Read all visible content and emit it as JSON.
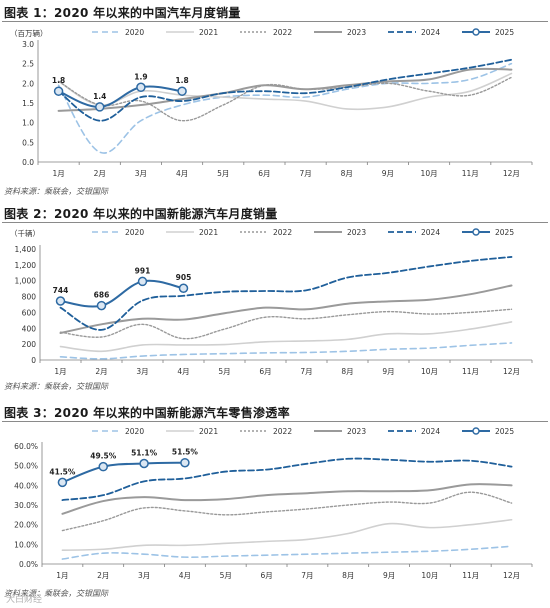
{
  "charts": [
    {
      "title": "图表 1：2020 年以来的中国汽车月度销量",
      "source": "资料来源：乘联会，交银国际",
      "chart_data": {
        "type": "line",
        "unit_label": "（百万辆）",
        "categories": [
          "1月",
          "2月",
          "3月",
          "4月",
          "5月",
          "6月",
          "7月",
          "8月",
          "9月",
          "10月",
          "11月",
          "12月"
        ],
        "ylim": [
          0,
          3.0
        ],
        "yticks": [
          "0.0",
          "0.5",
          "1.0",
          "1.5",
          "2.0",
          "2.5",
          "3.0"
        ],
        "ytick_values": [
          0,
          0.5,
          1,
          1.5,
          2,
          2.5,
          3
        ],
        "legend_position": "top",
        "series": [
          {
            "name": "2020",
            "color": "#9dc3e6",
            "dash": "6,4",
            "width": 1.6,
            "marker": false,
            "values": [
              1.95,
              0.25,
              1.05,
              1.45,
              1.65,
              1.7,
              1.65,
              1.85,
              2.0,
              2.0,
              2.1,
              2.5
            ]
          },
          {
            "name": "2021",
            "color": "#d0d0d0",
            "dash": "",
            "width": 1.6,
            "marker": false,
            "values": [
              2.05,
              1.45,
              1.8,
              1.7,
              1.65,
              1.6,
              1.55,
              1.35,
              1.4,
              1.65,
              1.8,
              2.25
            ]
          },
          {
            "name": "2022",
            "color": "#999999",
            "dash": "2,2",
            "width": 1.4,
            "marker": false,
            "values": [
              2.05,
              1.45,
              1.55,
              1.05,
              1.45,
              1.95,
              1.85,
              1.9,
              2.0,
              1.8,
              1.7,
              2.15
            ]
          },
          {
            "name": "2023",
            "color": "#9a9a9a",
            "dash": "",
            "width": 2.0,
            "marker": false,
            "values": [
              1.3,
              1.35,
              1.45,
              1.6,
              1.75,
              1.95,
              1.85,
              1.95,
              2.05,
              2.1,
              2.35,
              2.35
            ]
          },
          {
            "name": "2024",
            "color": "#1f5f9a",
            "dash": "6,3",
            "width": 1.8,
            "marker": false,
            "values": [
              1.8,
              1.05,
              1.65,
              1.55,
              1.75,
              1.8,
              1.75,
              1.9,
              2.1,
              2.25,
              2.4,
              2.6
            ]
          },
          {
            "name": "2025",
            "color": "#2e6aa3",
            "dash": "",
            "width": 2.0,
            "marker": true,
            "values": [
              1.8,
              1.4,
              1.9,
              1.8,
              null,
              null,
              null,
              null,
              null,
              null,
              null,
              null
            ],
            "labels": [
              "1.8",
              "1.4",
              "1.9",
              "1.8"
            ]
          }
        ]
      }
    },
    {
      "title": "图表 2：2020 年以来的中国新能源汽车月度销量",
      "source": "资料来源：乘联会，交银国际",
      "chart_data": {
        "type": "line",
        "unit_label": "（千辆）",
        "categories": [
          "1月",
          "2月",
          "3月",
          "4月",
          "5月",
          "6月",
          "7月",
          "8月",
          "9月",
          "10月",
          "11月",
          "12月"
        ],
        "ylim": [
          0,
          1400
        ],
        "yticks": [
          "0",
          "200",
          "400",
          "600",
          "800",
          "1,000",
          "1,200",
          "1,400"
        ],
        "ytick_values": [
          0,
          200,
          400,
          600,
          800,
          1000,
          1200,
          1400
        ],
        "legend_position": "top",
        "series": [
          {
            "name": "2020",
            "color": "#9dc3e6",
            "dash": "6,4",
            "width": 1.6,
            "marker": false,
            "values": [
              40,
              15,
              50,
              70,
              80,
              90,
              95,
              110,
              135,
              150,
              185,
              215
            ]
          },
          {
            "name": "2021",
            "color": "#d0d0d0",
            "dash": "",
            "width": 1.6,
            "marker": false,
            "values": [
              170,
              110,
              190,
              190,
              195,
              230,
              240,
              260,
              330,
              330,
              390,
              480
            ]
          },
          {
            "name": "2022",
            "color": "#999999",
            "dash": "2,2",
            "width": 1.4,
            "marker": false,
            "values": [
              350,
              290,
              450,
              270,
              390,
              540,
              520,
              570,
              610,
              580,
              600,
              640
            ]
          },
          {
            "name": "2023",
            "color": "#9a9a9a",
            "dash": "",
            "width": 2.0,
            "marker": false,
            "values": [
              340,
              450,
              520,
              510,
              590,
              660,
              640,
              710,
              740,
              760,
              830,
              940
            ]
          },
          {
            "name": "2024",
            "color": "#1f5f9a",
            "dash": "6,3",
            "width": 1.8,
            "marker": false,
            "values": [
              660,
              380,
              750,
              810,
              860,
              870,
              880,
              1040,
              1100,
              1180,
              1250,
              1300
            ]
          },
          {
            "name": "2025",
            "color": "#2e6aa3",
            "dash": "",
            "width": 2.0,
            "marker": true,
            "values": [
              744,
              686,
              991,
              905,
              null,
              null,
              null,
              null,
              null,
              null,
              null,
              null
            ],
            "labels": [
              "744",
              "686",
              "991",
              "905"
            ]
          }
        ]
      }
    },
    {
      "title": "图表 3：2020 年以来的中国新能源汽车零售渗透率",
      "source": "资料来源：乘联会，交银国际",
      "chart_data": {
        "type": "line",
        "unit_label": "",
        "categories": [
          "1月",
          "2月",
          "3月",
          "4月",
          "5月",
          "6月",
          "7月",
          "8月",
          "9月",
          "10月",
          "11月",
          "12月"
        ],
        "ylim": [
          0,
          60
        ],
        "yticks": [
          "0.0%",
          "10.0%",
          "20.0%",
          "30.0%",
          "40.0%",
          "50.0%",
          "60.0%"
        ],
        "ytick_values": [
          0,
          10,
          20,
          30,
          40,
          50,
          60
        ],
        "legend_position": "top",
        "series": [
          {
            "name": "2020",
            "color": "#9dc3e6",
            "dash": "6,4",
            "width": 1.6,
            "marker": false,
            "values": [
              2.5,
              5.5,
              5.0,
              3.5,
              4.0,
              4.5,
              5.0,
              5.5,
              6.0,
              6.5,
              7.5,
              9.0
            ]
          },
          {
            "name": "2021",
            "color": "#d0d0d0",
            "dash": "",
            "width": 1.6,
            "marker": false,
            "values": [
              7.0,
              7.5,
              9.5,
              9.5,
              10.5,
              11.5,
              12.5,
              15.5,
              20.5,
              18.5,
              20.0,
              22.5
            ]
          },
          {
            "name": "2022",
            "color": "#999999",
            "dash": "2,2",
            "width": 1.4,
            "marker": false,
            "values": [
              17.0,
              22.0,
              28.5,
              27.0,
              25.0,
              26.5,
              28.0,
              30.0,
              31.5,
              31.0,
              36.5,
              31.0
            ]
          },
          {
            "name": "2023",
            "color": "#9a9a9a",
            "dash": "",
            "width": 2.0,
            "marker": false,
            "values": [
              25.5,
              32.0,
              34.0,
              32.5,
              33.0,
              35.0,
              36.0,
              37.0,
              37.0,
              37.5,
              40.5,
              40.0
            ]
          },
          {
            "name": "2024",
            "color": "#1f5f9a",
            "dash": "6,3",
            "width": 1.8,
            "marker": false,
            "values": [
              32.5,
              35.0,
              42.0,
              43.5,
              47.0,
              48.0,
              51.0,
              53.5,
              53.0,
              52.0,
              52.5,
              49.5
            ]
          },
          {
            "name": "2025",
            "color": "#2e6aa3",
            "dash": "",
            "width": 2.0,
            "marker": true,
            "values": [
              41.5,
              49.5,
              51.1,
              51.5,
              null,
              null,
              null,
              null,
              null,
              null,
              null,
              null
            ],
            "labels": [
              "41.5%",
              "49.5%",
              "51.1%",
              "51.5%"
            ]
          }
        ]
      }
    }
  ],
  "watermark": "大白财经"
}
